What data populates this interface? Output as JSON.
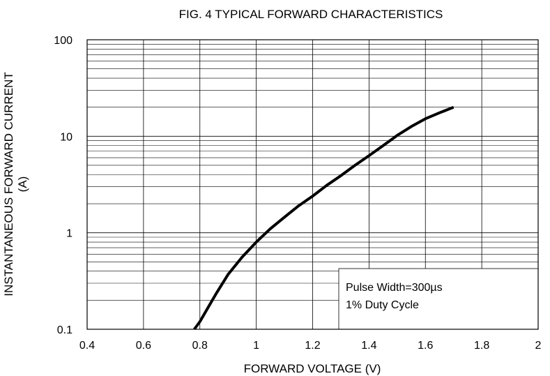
{
  "chart_data": {
    "type": "line",
    "title": "FIG. 4 TYPICAL FORWARD CHARACTERISTICS",
    "xlabel": "FORWARD VOLTAGE (V)",
    "ylabel_line1": "INSTANTANEOUS FORWARD CURRENT",
    "ylabel_line2": "(A)",
    "xlim": [
      0.4,
      2.0
    ],
    "ylim": [
      0.1,
      100
    ],
    "yscale": "log",
    "grid": true,
    "x_ticks": [
      "0.4",
      "0.6",
      "0.8",
      "1",
      "1.2",
      "1.4",
      "1.6",
      "1.8",
      "2"
    ],
    "x_tick_values": [
      0.4,
      0.6,
      0.8,
      1.0,
      1.2,
      1.4,
      1.6,
      1.8,
      2.0
    ],
    "y_ticks": [
      "0.1",
      "1",
      "10",
      "100"
    ],
    "y_tick_values": [
      0.1,
      1,
      10,
      100
    ],
    "series": [
      {
        "color": "#000000",
        "x": [
          0.78,
          0.8,
          0.83,
          0.86,
          0.9,
          0.95,
          1.0,
          1.05,
          1.1,
          1.15,
          1.2,
          1.25,
          1.3,
          1.35,
          1.4,
          1.45,
          1.5,
          1.55,
          1.6,
          1.65,
          1.7
        ],
        "y": [
          0.1,
          0.12,
          0.17,
          0.24,
          0.37,
          0.56,
          0.8,
          1.1,
          1.45,
          1.9,
          2.4,
          3.1,
          3.9,
          5.0,
          6.3,
          8.0,
          10.2,
          12.6,
          15.2,
          17.5,
          20
        ]
      }
    ],
    "annotations": [
      {
        "text": "Pulse Width=300µs"
      },
      {
        "text": "1% Duty Cycle"
      }
    ]
  }
}
